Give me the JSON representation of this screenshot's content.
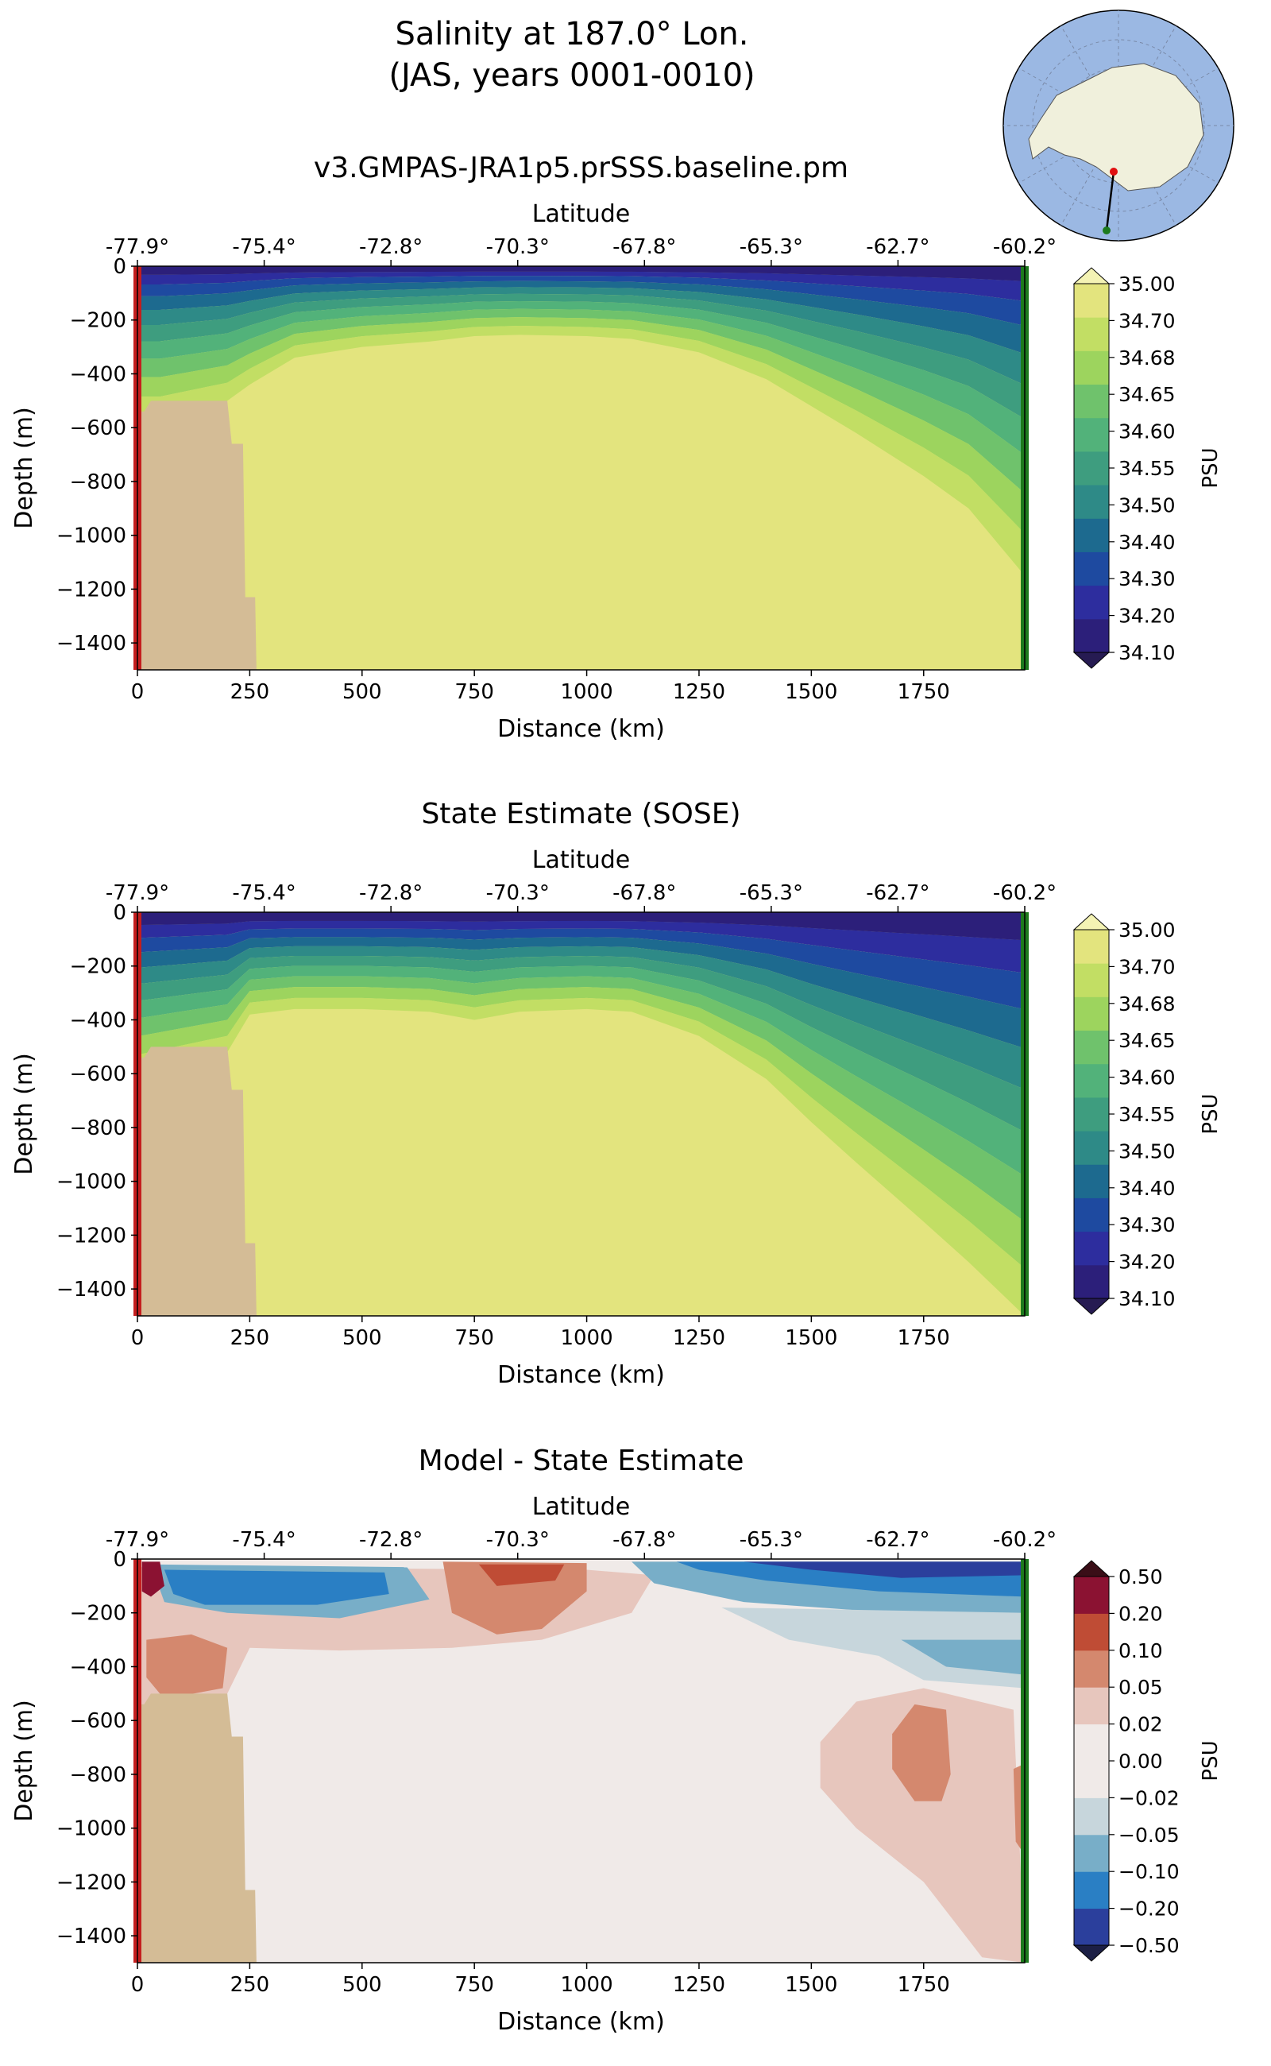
{
  "title_line1": "Salinity at 187.0° Lon.",
  "title_line2": "(JAS, years 0001-0010)",
  "inset_map": {
    "description_icon": "antarctica-polar-map-icon",
    "ocean_color": "#9bb8e3",
    "land_color": "#f0f0dc"
  },
  "panels": [
    {
      "title": "v3.GMPAS-JRA1p5.prSSS.baseline.pm"
    },
    {
      "title": "State Estimate (SOSE)"
    },
    {
      "title": "Model - State Estimate"
    }
  ],
  "axes": {
    "top_label": "Latitude",
    "lat_ticks": [
      "-77.9°",
      "-75.4°",
      "-72.8°",
      "-70.3°",
      "-67.8°",
      "-65.3°",
      "-62.7°",
      "-60.2°"
    ],
    "x_label": "Distance (km)",
    "x_ticks": [
      "0",
      "250",
      "500",
      "750",
      "1000",
      "1250",
      "1500",
      "1750"
    ],
    "y_label": "Depth (m)",
    "y_ticks": [
      "0",
      "−200",
      "−400",
      "−600",
      "−800",
      "−1000",
      "−1200",
      "−1400"
    ]
  },
  "colorbars": {
    "salinity": {
      "label": "PSU",
      "levels": [
        "34.10",
        "34.20",
        "34.30",
        "34.40",
        "34.50",
        "34.55",
        "34.60",
        "34.65",
        "34.68",
        "34.70",
        "35.00"
      ],
      "colors": [
        "#2c1f7a",
        "#2d2d9e",
        "#1e4aa0",
        "#1d6a8f",
        "#2e8a87",
        "#3e9d7f",
        "#52b27a",
        "#6fc26c",
        "#9dd45e",
        "#c2de64",
        "#e3e47e"
      ],
      "under": "#261b52",
      "over": "#f4f3b4"
    },
    "difference": {
      "label": "PSU",
      "levels": [
        "−0.50",
        "−0.20",
        "−0.10",
        "−0.05",
        "−0.02",
        "0.00",
        "0.02",
        "0.05",
        "0.10",
        "0.20",
        "0.50"
      ],
      "colors": [
        "#2b3f9c",
        "#2a7fc4",
        "#78aec8",
        "#c7d6dc",
        "#f0eae8",
        "#f0eae8",
        "#e7c6bd",
        "#d4886e",
        "#bf4c35",
        "#8b1232"
      ],
      "under": "#1c1f45",
      "over": "#3a0e17"
    }
  },
  "chart_data": [
    {
      "type": "heatmap",
      "title": "v3.GMPAS-JRA1p5.prSSS.baseline.pm",
      "xlabel": "Distance (km)",
      "ylabel": "Depth (m)",
      "xlim": [
        0,
        1975
      ],
      "ylim": [
        -1500,
        0
      ],
      "colorbar_label": "PSU",
      "isohaline_depths_m": {
        "x": [
          0,
          150,
          250,
          500,
          750,
          1000,
          1250,
          1500,
          1750,
          1970
        ],
        "34.70": [
          -600,
          -560,
          -470,
          -320,
          -260,
          -260,
          -380,
          -620,
          -880,
          -1150
        ]
      }
    },
    {
      "type": "heatmap",
      "title": "State Estimate (SOSE)",
      "xlabel": "Distance (km)",
      "ylabel": "Depth (m)",
      "xlim": [
        0,
        1975
      ],
      "ylim": [
        -1500,
        0
      ],
      "colorbar_label": "PSU",
      "isohaline_depths_m": {
        "x": [
          0,
          150,
          250,
          500,
          750,
          1000,
          1250,
          1500,
          1750,
          1970
        ],
        "34.70": [
          -650,
          -540,
          -370,
          -360,
          -400,
          -360,
          -460,
          -800,
          -1200,
          -1500
        ]
      }
    },
    {
      "type": "heatmap",
      "title": "Model - State Estimate",
      "xlabel": "Distance (km)",
      "ylabel": "Depth (m)",
      "xlim": [
        0,
        1975
      ],
      "ylim": [
        -1500,
        0
      ],
      "colorbar_label": "PSU"
    }
  ]
}
